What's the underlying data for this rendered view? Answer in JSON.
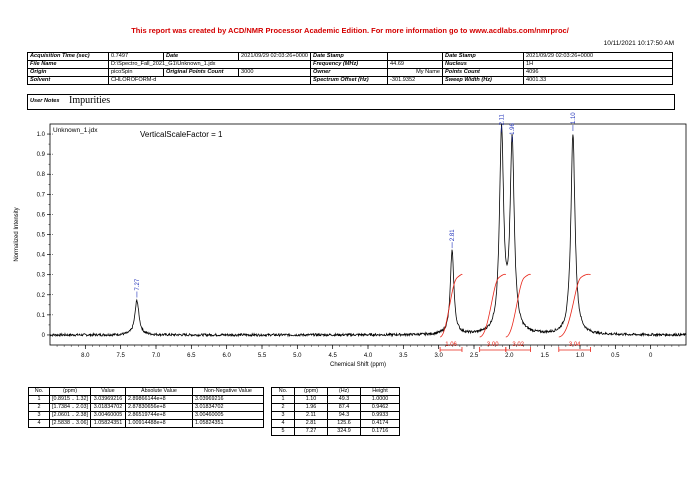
{
  "banner": "This report was created by ACD/NMR Processor Academic Edition. For more information go to www.acdlabs.com/nmrproc/",
  "print_datetime": "10/11/2021 10:17:50 AM",
  "meta": {
    "acq_time_label": "Acquisition Time (sec)",
    "acq_time": "0.7497",
    "date_label": "Date",
    "date": "2021/09/29 02:03:26+0000",
    "date_stamp_label": "Date Stamp",
    "date_stamp": "2021/09/29 02:03:26+0000",
    "file_name_label": "File Name",
    "file_name": "D:\\Spectro_Fall_2021_G1\\Unknown_1.jdx",
    "frequency_label": "Frequency (MHz)",
    "frequency": "44.69",
    "nucleus_label": "Nucleus",
    "nucleus": "1H",
    "origin_label": "Origin",
    "origin": "picoSpin",
    "orig_points_label": "Original Points Count",
    "orig_points": "3000",
    "owner_label": "Owner",
    "owner": "My Name",
    "points_count_label": "Points Count",
    "points_count": "4096",
    "solvent_label": "Solvent",
    "solvent": "CHLOROFORM-d",
    "spec_offset_label": "Spectrum Offset (Hz)",
    "spec_offset": "-301.9352",
    "sweep_width_label": "Sweep Width (Hz)",
    "sweep_width": "4001.33"
  },
  "notes": {
    "label": "User Notes",
    "value": "Impurities"
  },
  "chart_data": {
    "type": "line",
    "title": "Unknown_1.jdx",
    "annotation": "VerticalScaleFactor = 1",
    "xlabel": "Chemical Shift (ppm)",
    "ylabel": "Normalized Intensity",
    "xlim": [
      8.5,
      -0.5
    ],
    "ylim": [
      -0.05,
      1.05
    ],
    "x_reversed": true,
    "x_ticks": [
      "8.0",
      "7.5",
      "7.0",
      "6.5",
      "6.0",
      "5.5",
      "5.0",
      "4.5",
      "4.0",
      "3.5",
      "3.0",
      "2.5",
      "2.0",
      "1.5",
      "1.0",
      "0.5",
      "0"
    ],
    "y_ticks": [
      "0",
      "0.1",
      "0.2",
      "0.3",
      "0.4",
      "0.5",
      "0.6",
      "0.7",
      "0.8",
      "0.9",
      "1.0"
    ],
    "peaks": [
      {
        "ppm": 7.27,
        "height": 0.1716,
        "width": 0.035,
        "label": "7.27"
      },
      {
        "ppm": 2.81,
        "height": 0.4174,
        "width": 0.03,
        "label": "2.81"
      },
      {
        "ppm": 2.11,
        "height": 0.9933,
        "width": 0.035,
        "label": "2.11"
      },
      {
        "ppm": 1.96,
        "height": 0.9462,
        "width": 0.035,
        "label": "1.96"
      },
      {
        "ppm": 1.1,
        "height": 1.0,
        "width": 0.035,
        "label": "1.10"
      }
    ],
    "integrals": [
      {
        "from": 2.98,
        "to": 2.67,
        "value": "1.06"
      },
      {
        "from": 2.42,
        "to": 2.05,
        "value": "3.00"
      },
      {
        "from": 2.05,
        "to": 1.7,
        "value": "3.02"
      },
      {
        "from": 1.3,
        "to": 0.85,
        "value": "3.04"
      }
    ]
  },
  "integral_table": {
    "headers": [
      "No.",
      "(ppm)",
      "Value",
      "Absolute Value",
      "Non-Negative Value"
    ],
    "rows": [
      [
        "1",
        "[0.8915 .. 1.32]",
        "3.03969216",
        "2.89866144e+8",
        "3.03969216"
      ],
      [
        "2",
        "[1.7384 .. 2.03]",
        "3.01834702",
        "2.87830656e+8",
        "3.01834702"
      ],
      [
        "3",
        "[2.0601 .. 2.38]",
        "3.00460005",
        "2.86519744e+8",
        "3.00460005"
      ],
      [
        "4",
        "[2.5838 .. 3.06]",
        "1.05824351",
        "1.00914488e+8",
        "1.05824351"
      ]
    ]
  },
  "peak_table": {
    "headers": [
      "No.",
      "(ppm)",
      "(Hz)",
      "Height"
    ],
    "rows": [
      [
        "1",
        "1.10",
        "49.3",
        "1.0000"
      ],
      [
        "2",
        "1.96",
        "87.4",
        "0.9462"
      ],
      [
        "3",
        "2.11",
        "94.3",
        "0.9933"
      ],
      [
        "4",
        "2.81",
        "125.6",
        "0.4174"
      ],
      [
        "5",
        "7.27",
        "324.9",
        "0.1716"
      ]
    ]
  },
  "colors": {
    "banner": "#d40000",
    "integral": "#e8261a",
    "peak_label": "#2233bb"
  }
}
